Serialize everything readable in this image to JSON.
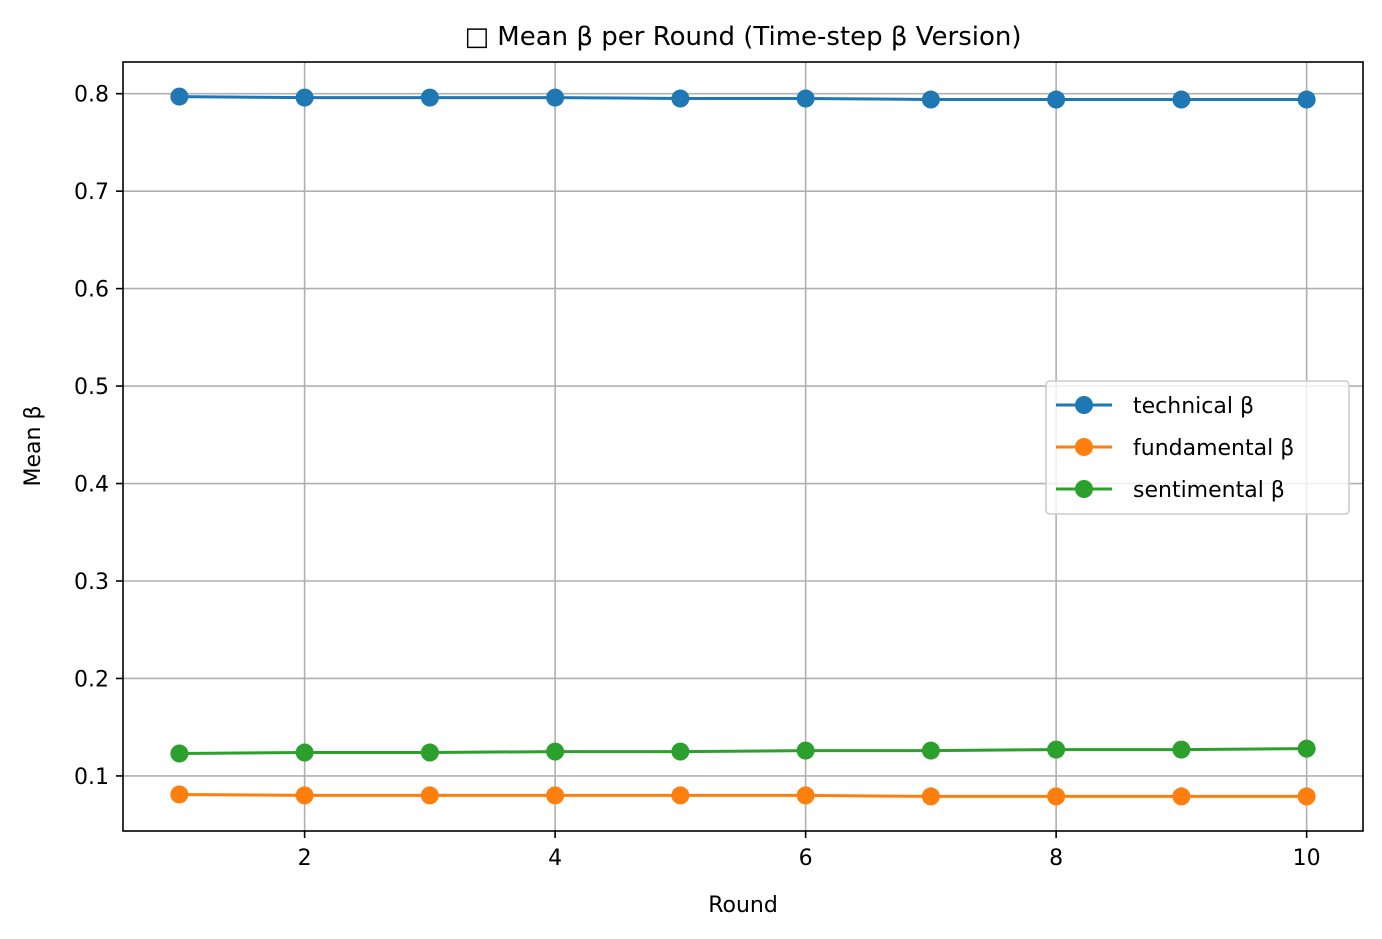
{
  "chart_data": {
    "type": "line",
    "title": "□ Mean β per Round (Time-step β Version)",
    "xlabel": "Round",
    "ylabel": "Mean β",
    "x": [
      1,
      2,
      3,
      4,
      5,
      6,
      7,
      8,
      9,
      10
    ],
    "xlim": [
      0.55,
      10.45
    ],
    "ylim": [
      0.0435,
      0.8325
    ],
    "xticks": [
      2,
      4,
      6,
      8,
      10
    ],
    "xtick_labels": [
      "2",
      "4",
      "6",
      "8",
      "10"
    ],
    "yticks": [
      0.1,
      0.2,
      0.3,
      0.4,
      0.5,
      0.6,
      0.7,
      0.8
    ],
    "ytick_labels": [
      "0.1",
      "0.2",
      "0.3",
      "0.4",
      "0.5",
      "0.6",
      "0.7",
      "0.8"
    ],
    "grid": true,
    "legend_position": "center-right",
    "series": [
      {
        "name": "technical β",
        "color": "#1f77b4",
        "values": [
          0.797,
          0.796,
          0.796,
          0.796,
          0.795,
          0.795,
          0.794,
          0.794,
          0.794,
          0.794
        ]
      },
      {
        "name": "fundamental β",
        "color": "#ff7f0e",
        "values": [
          0.081,
          0.08,
          0.08,
          0.08,
          0.08,
          0.08,
          0.079,
          0.079,
          0.079,
          0.079
        ]
      },
      {
        "name": "sentimental β",
        "color": "#2ca02c",
        "values": [
          0.123,
          0.124,
          0.124,
          0.125,
          0.125,
          0.126,
          0.126,
          0.127,
          0.127,
          0.128
        ]
      }
    ]
  }
}
